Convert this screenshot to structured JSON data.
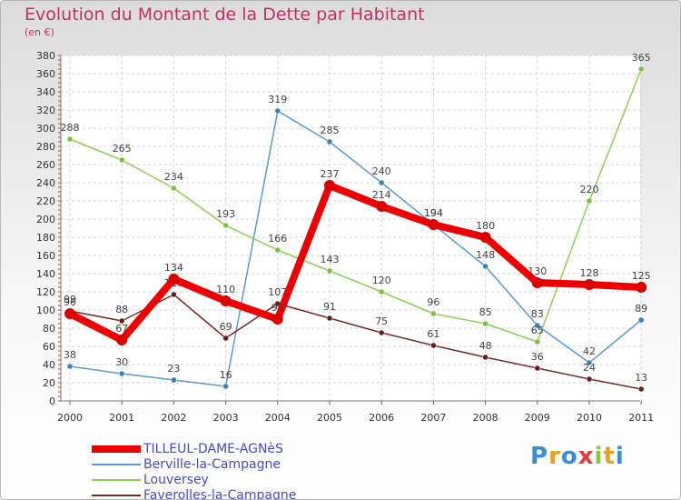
{
  "header": {
    "title": "Evolution du Montant de la Dette par Habitant",
    "subtitle": "(en €)"
  },
  "logo": {
    "letters": [
      "P",
      "r",
      "o",
      "x",
      "i",
      "t",
      "i"
    ],
    "colors": [
      "#3a8fd4",
      "#e8a020",
      "#3a8fd4",
      "#e03a3a",
      "#8cc83c",
      "#e8a020",
      "#3a8fd4"
    ]
  },
  "chart_data": {
    "type": "line",
    "title": "Evolution du Montant de la Dette par Habitant",
    "subtitle": "(en €)",
    "x": [
      "2000",
      "2001",
      "2002",
      "2003",
      "2004",
      "2005",
      "2006",
      "2007",
      "2008",
      "2009",
      "2010",
      "2011"
    ],
    "ylim": [
      0,
      380
    ],
    "yticks": [
      0,
      20,
      40,
      60,
      80,
      100,
      120,
      140,
      160,
      180,
      200,
      220,
      240,
      260,
      280,
      300,
      320,
      340,
      360,
      380
    ],
    "grid": true,
    "legend_position": "bottom-left",
    "series": [
      {
        "name": "TILLEUL-DAME-AGNèS",
        "color": "#ee0000",
        "width": 8,
        "marker": "#dd0000",
        "labels": true,
        "values": [
          96,
          67,
          134,
          110,
          90,
          237,
          214,
          194,
          180,
          130,
          128,
          125
        ]
      },
      {
        "name": "Berville-la-Campagne",
        "color": "#5a9ad6",
        "width": 1.5,
        "marker": "#3a7fc0",
        "labels": true,
        "values": [
          38,
          30,
          23,
          16,
          319,
          285,
          240,
          194,
          148,
          83,
          42,
          89
        ]
      },
      {
        "name": "Louversey",
        "color": "#8cd050",
        "width": 1.5,
        "marker": "#7cc040",
        "labels": true,
        "values": [
          288,
          265,
          234,
          193,
          166,
          143,
          120,
          96,
          85,
          65,
          220,
          365
        ]
      },
      {
        "name": "Faverolles-la-Campagne",
        "color": "#7a2a2a",
        "width": 1.5,
        "marker": "#6a1a1a",
        "labels": true,
        "values": [
          99,
          88,
          117,
          69,
          107,
          91,
          75,
          61,
          48,
          36,
          24,
          13
        ]
      }
    ]
  }
}
